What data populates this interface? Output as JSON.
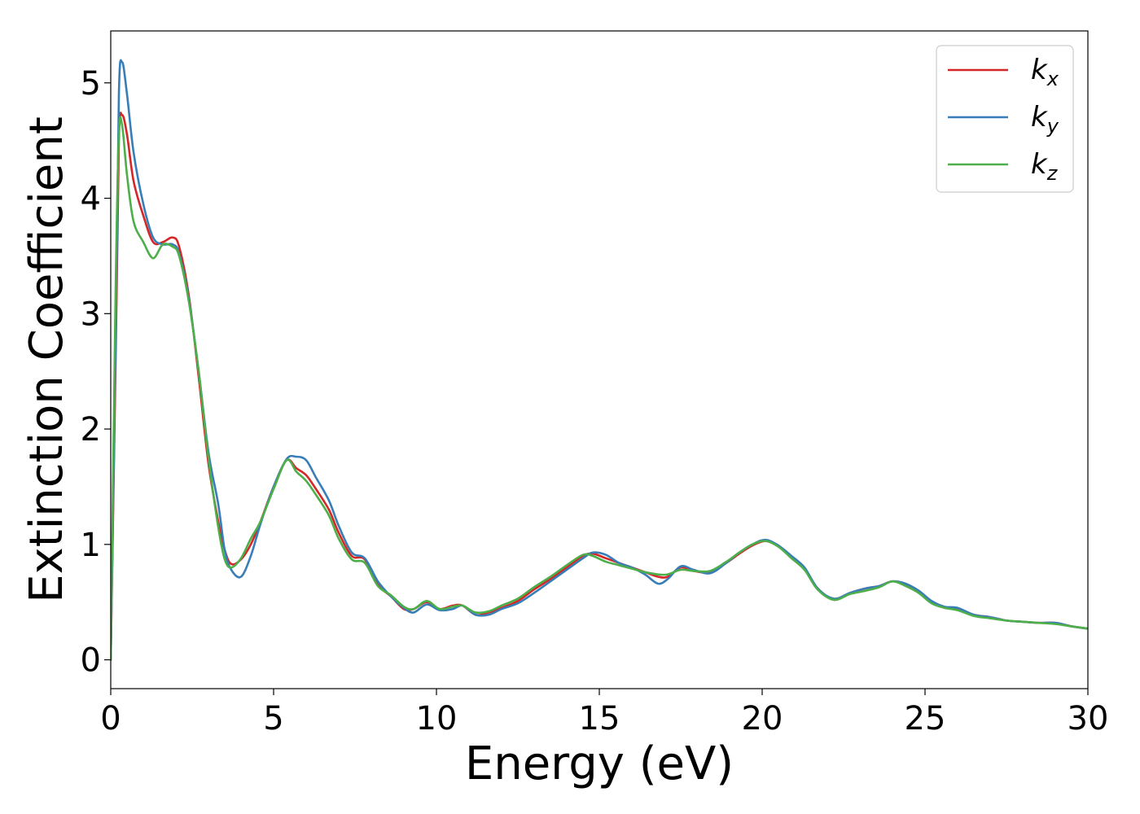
{
  "chart_data": {
    "type": "line",
    "xlabel": "Energy (eV)",
    "ylabel": "Extinction Coefficient",
    "xlim": [
      0,
      30
    ],
    "ylim": [
      -0.25,
      5.45
    ],
    "xticks": [
      0,
      5,
      10,
      15,
      20,
      25,
      30
    ],
    "yticks": [
      0,
      1,
      2,
      3,
      4,
      5
    ],
    "xtick_labels": [
      "0",
      "5",
      "10",
      "15",
      "20",
      "25",
      "30"
    ],
    "ytick_labels": [
      "0",
      "1",
      "2",
      "3",
      "4",
      "5"
    ],
    "grid": false,
    "legend_position": "top-right",
    "x": [
      0,
      0.15,
      0.25,
      0.35,
      0.5,
      0.7,
      1.0,
      1.3,
      1.6,
      1.9,
      2.1,
      2.4,
      2.7,
      3.0,
      3.3,
      3.5,
      3.7,
      4.0,
      4.3,
      4.6,
      5.0,
      5.4,
      5.7,
      6.0,
      6.3,
      6.7,
      7.0,
      7.4,
      7.8,
      8.2,
      8.6,
      9.0,
      9.3,
      9.7,
      10.1,
      10.5,
      10.8,
      11.2,
      11.6,
      12.0,
      12.5,
      13.0,
      13.5,
      14.0,
      14.5,
      14.8,
      15.2,
      15.6,
      16.0,
      16.4,
      16.8,
      17.1,
      17.5,
      17.9,
      18.4,
      18.9,
      19.3,
      19.7,
      20.1,
      20.5,
      20.9,
      21.3,
      21.7,
      22.2,
      22.7,
      23.2,
      23.6,
      24.0,
      24.4,
      24.8,
      25.2,
      25.6,
      26.0,
      26.5,
      27.0,
      27.5,
      28.0,
      28.5,
      29.0,
      29.5,
      30.0
    ],
    "series": [
      {
        "name": "k_x",
        "label_base": "k",
        "label_sub": "x",
        "color": "#d62728",
        "values": [
          0.0,
          2.6,
          4.5,
          4.72,
          4.55,
          4.15,
          3.85,
          3.62,
          3.62,
          3.66,
          3.58,
          3.15,
          2.45,
          1.7,
          1.2,
          0.95,
          0.83,
          0.87,
          1.0,
          1.2,
          1.5,
          1.73,
          1.66,
          1.6,
          1.48,
          1.3,
          1.1,
          0.9,
          0.87,
          0.65,
          0.55,
          0.44,
          0.44,
          0.5,
          0.44,
          0.47,
          0.47,
          0.39,
          0.41,
          0.45,
          0.51,
          0.61,
          0.7,
          0.8,
          0.9,
          0.92,
          0.88,
          0.84,
          0.8,
          0.76,
          0.72,
          0.72,
          0.8,
          0.77,
          0.76,
          0.84,
          0.92,
          0.99,
          1.03,
          0.99,
          0.88,
          0.79,
          0.62,
          0.52,
          0.58,
          0.62,
          0.64,
          0.68,
          0.65,
          0.59,
          0.5,
          0.45,
          0.44,
          0.39,
          0.37,
          0.34,
          0.33,
          0.32,
          0.32,
          0.29,
          0.27
        ]
      },
      {
        "name": "k_y",
        "label_base": "k",
        "label_sub": "y",
        "color": "#377eb8",
        "values": [
          0.0,
          2.8,
          4.9,
          5.18,
          4.9,
          4.4,
          3.95,
          3.66,
          3.6,
          3.6,
          3.52,
          3.12,
          2.5,
          1.8,
          1.35,
          0.95,
          0.78,
          0.72,
          0.9,
          1.18,
          1.5,
          1.74,
          1.76,
          1.73,
          1.58,
          1.38,
          1.16,
          0.93,
          0.88,
          0.68,
          0.55,
          0.45,
          0.41,
          0.48,
          0.43,
          0.44,
          0.47,
          0.39,
          0.39,
          0.44,
          0.49,
          0.58,
          0.68,
          0.78,
          0.88,
          0.93,
          0.91,
          0.84,
          0.8,
          0.74,
          0.66,
          0.7,
          0.81,
          0.78,
          0.75,
          0.84,
          0.93,
          1.0,
          1.04,
          0.99,
          0.9,
          0.8,
          0.62,
          0.53,
          0.58,
          0.62,
          0.64,
          0.68,
          0.66,
          0.6,
          0.51,
          0.46,
          0.45,
          0.39,
          0.37,
          0.34,
          0.33,
          0.32,
          0.32,
          0.29,
          0.27
        ]
      },
      {
        "name": "k_z",
        "label_base": "k",
        "label_sub": "z",
        "color": "#4daf4a",
        "values": [
          0.0,
          3.2,
          4.55,
          4.63,
          4.2,
          3.8,
          3.62,
          3.48,
          3.6,
          3.58,
          3.5,
          3.1,
          2.5,
          1.75,
          1.15,
          0.87,
          0.8,
          0.88,
          1.05,
          1.2,
          1.48,
          1.73,
          1.63,
          1.55,
          1.43,
          1.25,
          1.05,
          0.87,
          0.84,
          0.64,
          0.56,
          0.46,
          0.44,
          0.51,
          0.44,
          0.46,
          0.47,
          0.41,
          0.42,
          0.47,
          0.53,
          0.63,
          0.72,
          0.82,
          0.91,
          0.9,
          0.85,
          0.82,
          0.79,
          0.76,
          0.74,
          0.74,
          0.78,
          0.77,
          0.77,
          0.85,
          0.93,
          1.0,
          1.03,
          0.98,
          0.88,
          0.78,
          0.61,
          0.52,
          0.57,
          0.6,
          0.63,
          0.68,
          0.64,
          0.58,
          0.49,
          0.45,
          0.43,
          0.38,
          0.36,
          0.34,
          0.33,
          0.32,
          0.31,
          0.29,
          0.27
        ]
      }
    ]
  }
}
